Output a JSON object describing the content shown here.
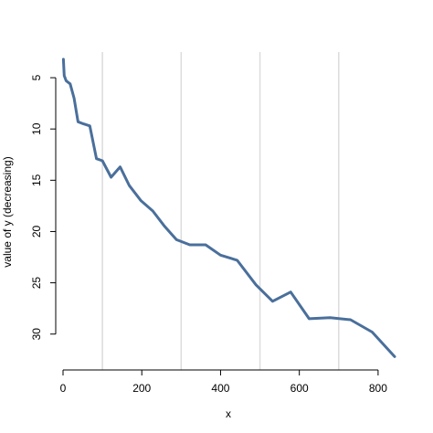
{
  "chart_data": {
    "type": "line",
    "title": "",
    "xlabel": "x",
    "ylabel": "value of y (decreasing)",
    "xlim": [
      0,
      842
    ],
    "ylim": [
      2.5,
      33.5
    ],
    "y_reversed": true,
    "grid": {
      "vertical": true,
      "horizontal": false,
      "vertical_at": [
        100,
        300,
        500,
        700
      ],
      "color": "#dcdcdc"
    },
    "x_ticks": [
      0,
      200,
      400,
      600,
      800
    ],
    "y_ticks": [
      5,
      10,
      15,
      20,
      25,
      30
    ],
    "series": [
      {
        "color": "#4a6f9b",
        "x": [
          1,
          3,
          8,
          18,
          28,
          38,
          52,
          68,
          85,
          100,
          122,
          145,
          168,
          198,
          228,
          258,
          288,
          322,
          362,
          400,
          442,
          490,
          532,
          578,
          625,
          678,
          730,
          785,
          842
        ],
        "y": [
          3.2,
          4.8,
          5.3,
          5.6,
          7.0,
          9.3,
          9.5,
          9.7,
          12.9,
          13.1,
          14.7,
          13.7,
          15.5,
          17.0,
          18.0,
          19.5,
          20.8,
          21.3,
          21.3,
          22.3,
          22.8,
          25.2,
          26.8,
          25.9,
          28.5,
          28.4,
          28.6,
          29.8,
          32.2
        ]
      }
    ]
  }
}
